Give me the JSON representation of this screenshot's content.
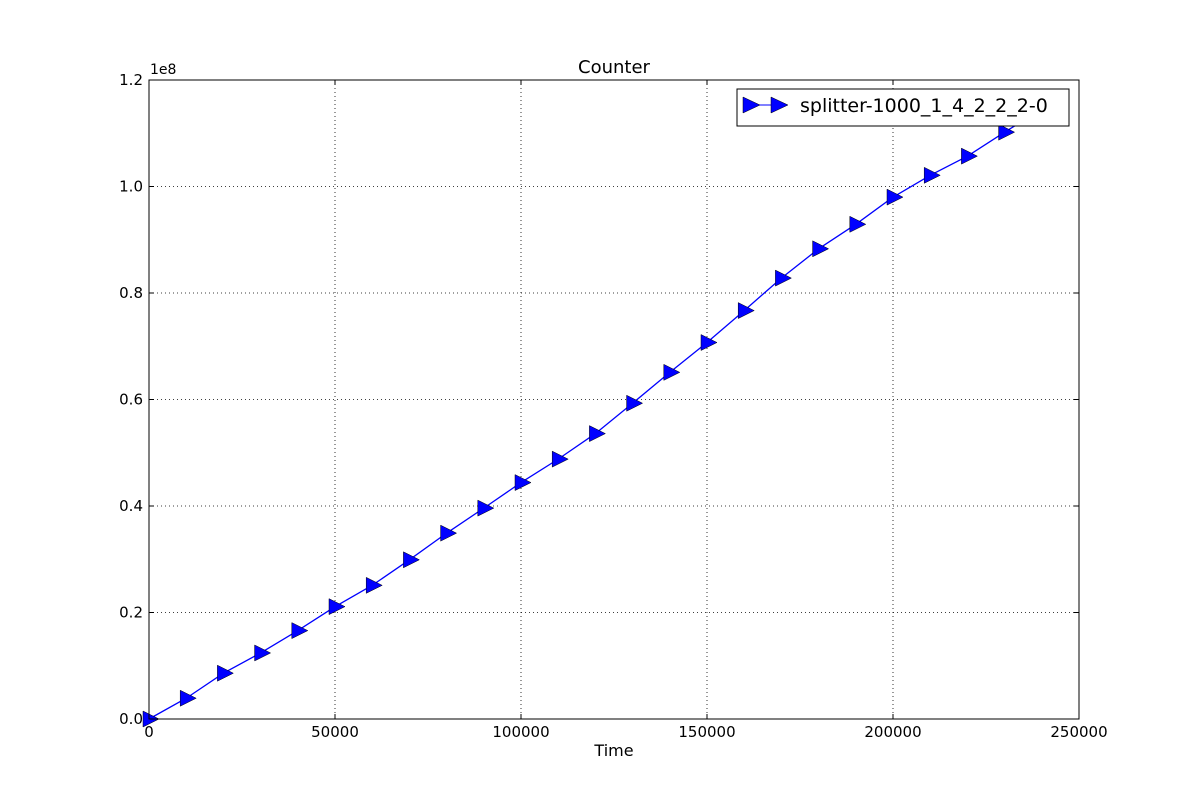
{
  "chart_data": {
    "type": "line",
    "title": "Counter",
    "xlabel": "Time",
    "ylabel": "",
    "y_multiplier": "1e8",
    "xlim": [
      0,
      250000
    ],
    "ylim": [
      0,
      120000000
    ],
    "x_ticks": [
      0,
      50000,
      100000,
      150000,
      200000,
      250000
    ],
    "x_tick_labels": [
      "0",
      "50000",
      "100000",
      "150000",
      "200000",
      "250000"
    ],
    "y_ticks": [
      0,
      20000000,
      40000000,
      60000000,
      80000000,
      100000000,
      120000000
    ],
    "y_tick_labels": [
      "0.0",
      "0.2",
      "0.4",
      "0.6",
      "0.8",
      "1.0",
      "1.2"
    ],
    "grid": true,
    "legend_position": "top-right",
    "series": [
      {
        "name": "splitter-1000_1_4_2_2_2-0",
        "color": "#0000ff",
        "marker": "triangle-right",
        "x": [
          0,
          10000,
          20000,
          30000,
          40000,
          50000,
          60000,
          70000,
          80000,
          90000,
          100000,
          110000,
          120000,
          130000,
          140000,
          150000,
          160000,
          170000,
          180000,
          190000,
          200000,
          210000,
          220000,
          230000,
          233000
        ],
        "y": [
          0,
          3900000,
          8600000,
          12400000,
          16600000,
          21100000,
          25100000,
          29900000,
          34900000,
          39600000,
          44400000,
          48800000,
          53600000,
          59300000,
          65100000,
          70700000,
          76700000,
          82800000,
          88300000,
          92900000,
          98000000,
          102100000,
          105700000,
          110200000,
          111500000
        ]
      }
    ]
  }
}
